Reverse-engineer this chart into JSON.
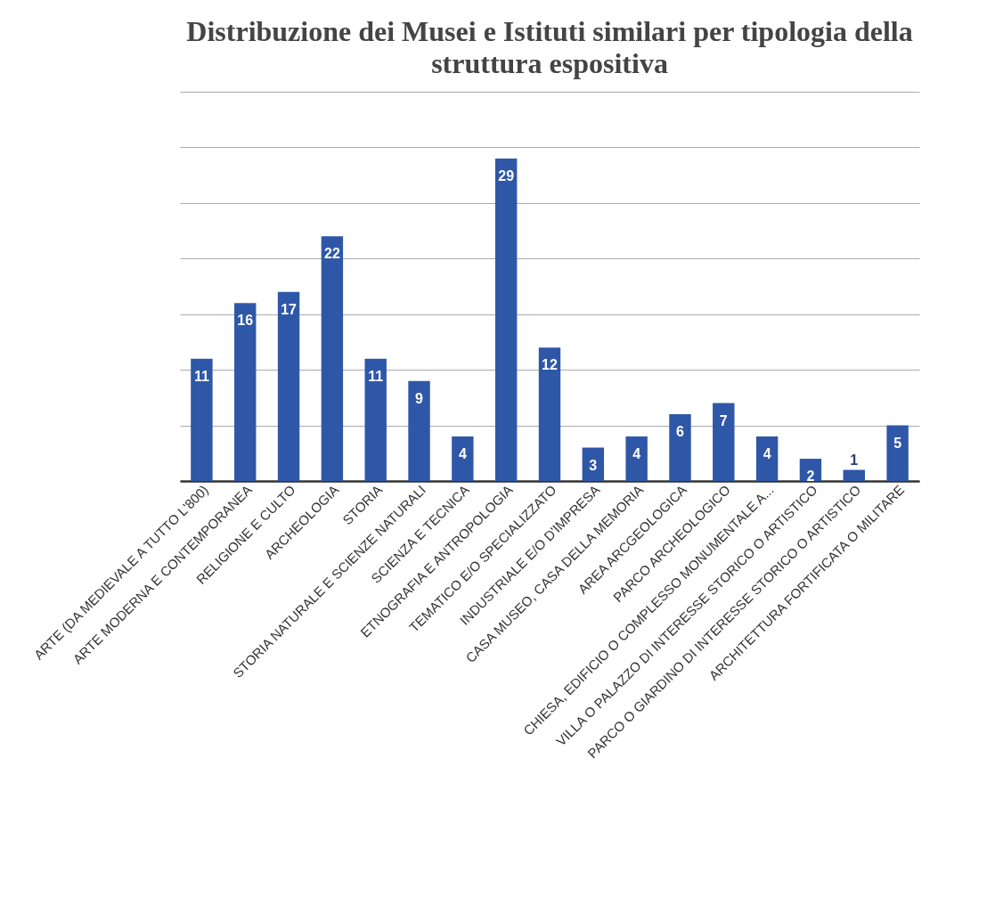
{
  "chart_data": {
    "type": "bar",
    "title": "Distribuzione dei Musei e Istituti similari per tipologia della struttura espositiva",
    "categories": [
      "ARTE  (DA MEDIEVALE A TUTTO L'800)",
      "ARTE MODERNA E CONTEMPORANEA",
      "RELIGIONE E CULTO",
      "ARCHEOLOGIA",
      "STORIA",
      "STORIA NATURALE E SCIENZE NATURALI",
      "SCIENZA E TECNICA",
      "ETNOGRAFIA E ANTROPOLOGIA",
      "TEMATICO E/O SPECIALIZZATO",
      "INDUSTRIALE E/O D'IMPRESA",
      "CASA MUSEO, CASA DELLA MEMORIA",
      "AREA ARCGEOLOGICA",
      "PARCO ARCHEOLOGICO",
      "CHIESA, EDIFICIO O COMPLESSO MONUMENTALE A...",
      "VILLA O PALAZZO DI INTERESSE STORICO O ARTISTICO",
      "PARCO O GIARDINO DI INTERESSE STORICO O ARTISTICO",
      "ARCHITETTURA FORTIFICATA O MILITARE"
    ],
    "values": [
      11,
      16,
      17,
      22,
      11,
      9,
      4,
      29,
      12,
      3,
      4,
      6,
      7,
      4,
      2,
      1,
      5
    ],
    "color": "#2f57a8",
    "ylim": [
      0,
      35
    ],
    "yticks": [
      {
        "value": 0,
        "label": null
      },
      {
        "value": 5,
        "label": null
      },
      {
        "value": 10,
        "label": null
      },
      {
        "value": 15,
        "label": null
      },
      {
        "value": 20,
        "label": null
      },
      {
        "value": 25,
        "label": null
      },
      {
        "value": 30,
        "label": null
      },
      {
        "value": 35,
        "label": null
      }
    ],
    "tick_labels": "x",
    "grid": "y",
    "data_labels": true
  }
}
